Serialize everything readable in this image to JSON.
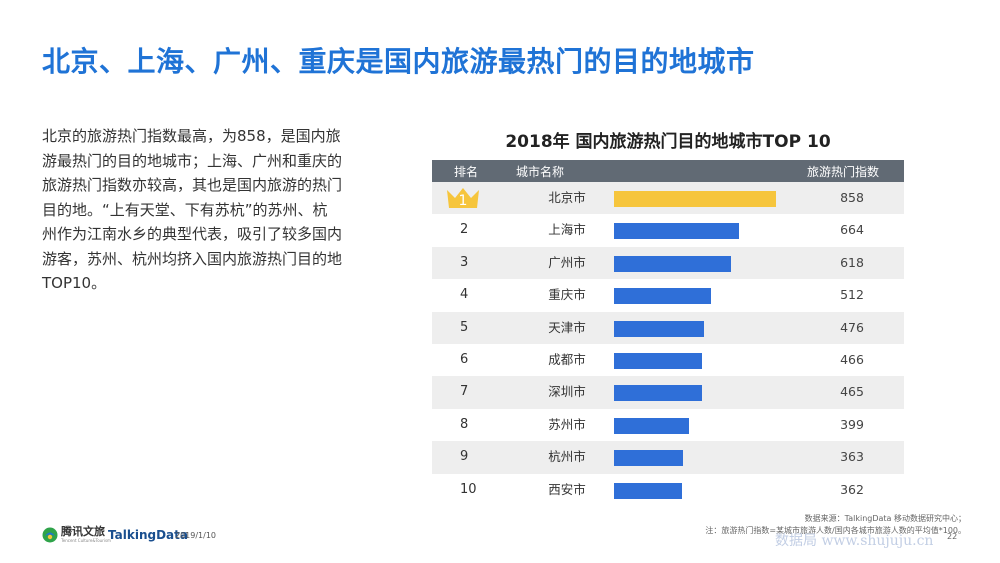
{
  "page": {
    "title": "北京、上海、广州、重庆是国内旅游最热门的目的地城市",
    "description": "北京的旅游热门指数最高，为858，是国内旅游最热门的目的地城市；上海、广州和重庆的旅游热门指数亦较高，其也是国内旅游的热门目的地。“上有天堂、下有苏杭”的苏州、杭州作为江南水乡的典型代表，吸引了较多国内游客，苏州、杭州均挤入国内旅游热门目的地TOP10。"
  },
  "chart_data": {
    "type": "bar",
    "title": "2018年 国内旅游热门目的地城市TOP 10",
    "headers": {
      "rank": "排名",
      "city": "城市名称",
      "value": "旅游热门指数"
    },
    "ranks": [
      "1",
      "2",
      "3",
      "4",
      "5",
      "6",
      "7",
      "8",
      "9",
      "10"
    ],
    "categories": [
      "北京市",
      "上海市",
      "广州市",
      "重庆市",
      "天津市",
      "成都市",
      "深圳市",
      "苏州市",
      "杭州市",
      "西安市"
    ],
    "values": [
      858,
      664,
      618,
      512,
      476,
      466,
      465,
      399,
      363,
      362
    ],
    "ylim": [
      0,
      1000
    ],
    "colors": {
      "top": "#f6c53c",
      "rest": "#2f6fd8"
    }
  },
  "source": {
    "line1": "数据来源：TalkingData 移动数据研究中心；",
    "line2": "注：旅游热门指数=某城市旅游人数/国内各城市旅游人数的平均值*100。"
  },
  "footer": {
    "logo_tencent": "腾讯文旅",
    "logo_tencent_sub": "Tencent Culture&Tourism",
    "logo_talkingdata": "TalkingData",
    "date": "2019/1/10",
    "page": "22"
  },
  "watermark": "数据局 www.shujuju.cn"
}
